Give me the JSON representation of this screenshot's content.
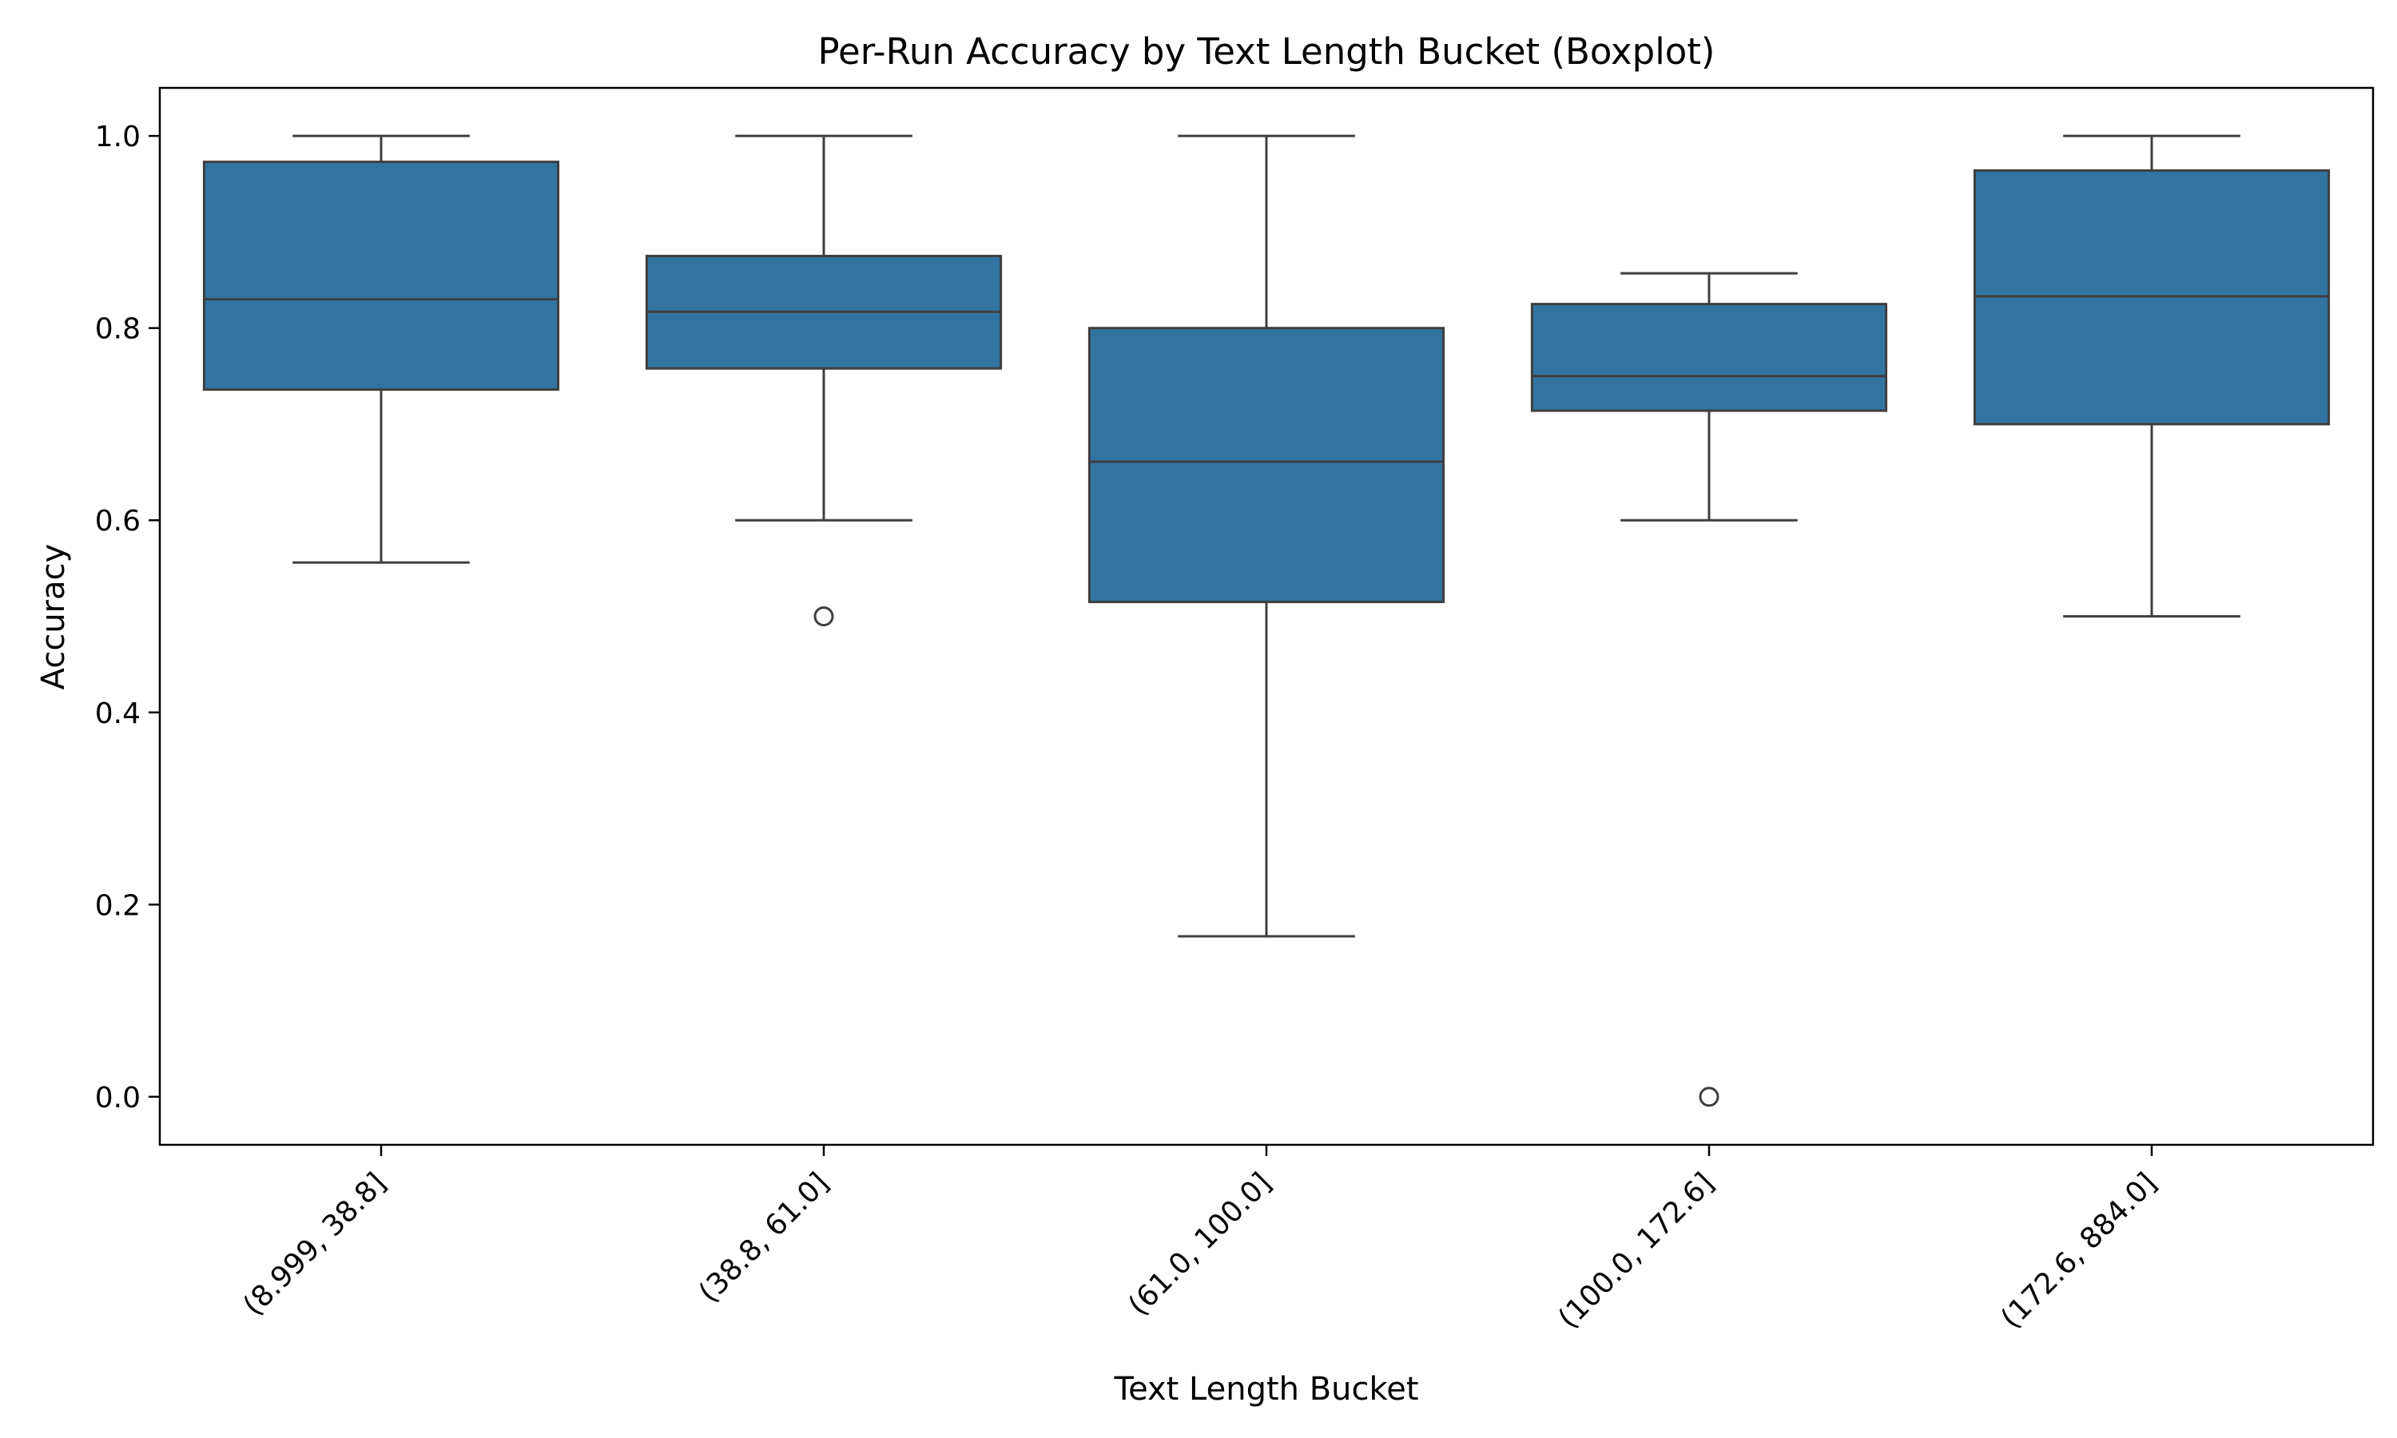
{
  "chart_data": {
    "type": "boxplot",
    "title": "Per-Run Accuracy by Text Length Bucket (Boxplot)",
    "xlabel": "Text Length Bucket",
    "ylabel": "Accuracy",
    "ylim": [
      -0.05,
      1.05
    ],
    "yticks": [
      0.0,
      0.2,
      0.4,
      0.6,
      0.8,
      1.0
    ],
    "ytick_labels": [
      "0.0",
      "0.2",
      "0.4",
      "0.6",
      "0.8",
      "1.0"
    ],
    "grid": false,
    "box_color": "#3274a1",
    "line_color": "#3f3f3f",
    "categories": [
      "(8.999, 38.8]",
      "(38.8, 61.0]",
      "(61.0, 100.0]",
      "(100.0, 172.6]",
      "(172.6, 884.0]"
    ],
    "boxes": [
      {
        "whisker_low": 0.556,
        "q1": 0.736,
        "median": 0.83,
        "q3": 0.973,
        "whisker_high": 1.0,
        "outliers": []
      },
      {
        "whisker_low": 0.6,
        "q1": 0.758,
        "median": 0.817,
        "q3": 0.875,
        "whisker_high": 1.0,
        "outliers": [
          0.5
        ]
      },
      {
        "whisker_low": 0.167,
        "q1": 0.515,
        "median": 0.661,
        "q3": 0.8,
        "whisker_high": 1.0,
        "outliers": []
      },
      {
        "whisker_low": 0.6,
        "q1": 0.714,
        "median": 0.75,
        "q3": 0.825,
        "whisker_high": 0.857,
        "outliers": [
          0.0
        ]
      },
      {
        "whisker_low": 0.5,
        "q1": 0.7,
        "median": 0.833,
        "q3": 0.964,
        "whisker_high": 1.0,
        "outliers": []
      }
    ]
  }
}
